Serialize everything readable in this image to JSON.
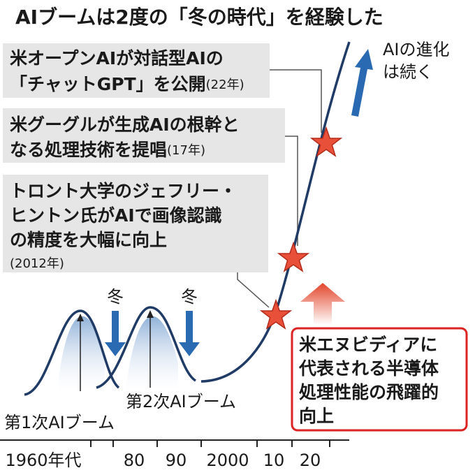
{
  "header": {
    "title": "AIブームは2度の「冬の時代」を経験した"
  },
  "callouts": [
    {
      "lines": [
        "米オープンAIが対話型AIの",
        "「チャットGPT」を公開"
      ],
      "year": "(22年)"
    },
    {
      "lines": [
        "米グーグルが生成AIの根幹と",
        "なる処理技術を提唱"
      ],
      "year": "(17年)"
    },
    {
      "lines": [
        "トロント大学のジェフリー・",
        "ヒントン氏がAIで画像認識",
        "の精度を大幅に向上"
      ],
      "year": "(2012年)"
    }
  ],
  "evolution_note": {
    "lines": [
      "AIの進化",
      "は続く"
    ]
  },
  "winter_labels": [
    "冬",
    "冬"
  ],
  "semiconductor_note": {
    "lines": [
      "米エヌビディアに",
      "代表される半導体",
      "処理性能の飛躍的",
      "向上"
    ]
  },
  "boom_labels": [
    "第2次AIブーム",
    "第1次AIブーム"
  ],
  "x_axis_labels": [
    "1960年代",
    "80",
    "90",
    "2000",
    "10",
    "20"
  ]
}
